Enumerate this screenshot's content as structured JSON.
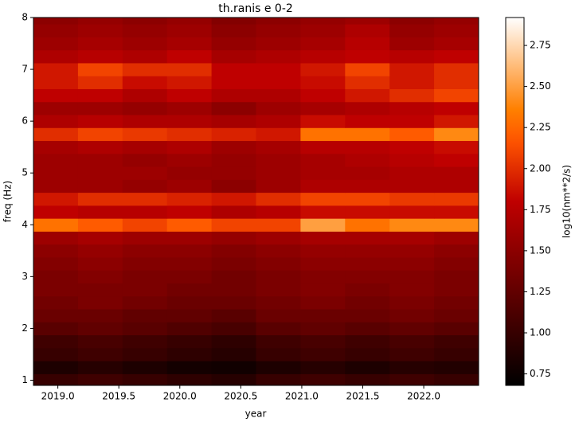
{
  "chart_data": {
    "type": "heatmap",
    "title": "th.ranis e 0-2",
    "x_label": "year",
    "y_label": "freq (Hz)",
    "colorbar_label": "log10(nm**2/s)",
    "colormap": "gist_heat",
    "xlim": [
      2018.8,
      2022.45
    ],
    "ylim": [
      0.9,
      8
    ],
    "xticks": [
      {
        "value": 2019,
        "label": "2019.0"
      },
      2019.5,
      {
        "value": 2020,
        "label": "2020.0"
      },
      2020.5,
      {
        "value": 2021,
        "label": "2021.0"
      },
      2021.5,
      {
        "value": 2022,
        "label": "2022.0"
      }
    ],
    "yticks": [
      1,
      2,
      3,
      4,
      5,
      6,
      7,
      8
    ],
    "clim": [
      0.68,
      2.92
    ],
    "cticks": [
      0.75,
      {
        "value": 1,
        "label": "1.00"
      },
      1.25,
      {
        "value": 1.5,
        "label": "1.50"
      },
      1.75,
      {
        "value": 2,
        "label": "2.00"
      },
      2.25,
      {
        "value": 2.5,
        "label": "2.50"
      },
      2.75
    ],
    "x": [
      2018.98,
      2019.35,
      2019.71,
      2020.08,
      2020.44,
      2020.81,
      2021.17,
      2021.54,
      2021.9,
      2022.27
    ],
    "y": [
      1,
      1.25,
      1.5,
      1.75,
      2,
      2.25,
      2.5,
      2.75,
      3,
      3.25,
      3.5,
      3.75,
      4,
      4.25,
      4.5,
      4.75,
      5,
      5.25,
      5.5,
      5.75,
      6,
      6.25,
      6.5,
      6.75,
      7,
      7.25,
      7.5,
      7.75,
      8
    ],
    "z": [
      [
        1.0,
        1.05,
        1.0,
        0.95,
        0.9,
        1.0,
        1.05,
        1.0,
        1.05,
        1.0
      ],
      [
        0.85,
        0.9,
        0.85,
        0.8,
        0.78,
        0.85,
        0.9,
        0.85,
        0.9,
        0.88
      ],
      [
        1.0,
        1.05,
        1.0,
        0.95,
        0.9,
        1.0,
        1.05,
        1.0,
        1.05,
        1.0
      ],
      [
        1.05,
        1.1,
        1.05,
        1.0,
        0.95,
        1.05,
        1.1,
        1.05,
        1.1,
        1.05
      ],
      [
        1.2,
        1.25,
        1.2,
        1.15,
        1.1,
        1.2,
        1.25,
        1.2,
        1.25,
        1.2
      ],
      [
        1.3,
        1.3,
        1.25,
        1.25,
        1.2,
        1.3,
        1.3,
        1.3,
        1.35,
        1.3
      ],
      [
        1.35,
        1.4,
        1.35,
        1.3,
        1.3,
        1.35,
        1.4,
        1.35,
        1.4,
        1.35
      ],
      [
        1.4,
        1.4,
        1.4,
        1.35,
        1.35,
        1.4,
        1.45,
        1.4,
        1.45,
        1.4
      ],
      [
        1.4,
        1.45,
        1.4,
        1.4,
        1.35,
        1.4,
        1.45,
        1.45,
        1.45,
        1.4
      ],
      [
        1.45,
        1.5,
        1.45,
        1.45,
        1.4,
        1.45,
        1.5,
        1.5,
        1.5,
        1.45
      ],
      [
        1.5,
        1.55,
        1.5,
        1.5,
        1.45,
        1.5,
        1.55,
        1.55,
        1.55,
        1.5
      ],
      [
        1.6,
        1.65,
        1.6,
        1.6,
        1.55,
        1.6,
        1.65,
        1.65,
        1.65,
        1.6
      ],
      [
        2.3,
        2.2,
        2.1,
        2.2,
        2.1,
        2.1,
        2.5,
        2.3,
        2.4,
        2.4
      ],
      [
        1.8,
        1.75,
        1.75,
        1.8,
        1.7,
        1.75,
        1.85,
        1.85,
        1.85,
        1.85
      ],
      [
        1.9,
        2.0,
        2.0,
        1.95,
        1.9,
        2.0,
        2.1,
        2.1,
        2.05,
        2.05
      ],
      [
        1.6,
        1.6,
        1.55,
        1.6,
        1.5,
        1.6,
        1.7,
        1.7,
        1.7,
        1.7
      ],
      [
        1.6,
        1.6,
        1.6,
        1.55,
        1.55,
        1.6,
        1.65,
        1.65,
        1.7,
        1.7
      ],
      [
        1.6,
        1.6,
        1.55,
        1.6,
        1.55,
        1.6,
        1.65,
        1.7,
        1.75,
        1.8
      ],
      [
        1.65,
        1.7,
        1.65,
        1.7,
        1.6,
        1.65,
        1.75,
        1.75,
        1.8,
        1.85
      ],
      [
        2.0,
        2.1,
        2.05,
        2.0,
        1.95,
        1.9,
        2.3,
        2.3,
        2.2,
        2.4
      ],
      [
        1.7,
        1.75,
        1.7,
        1.7,
        1.65,
        1.7,
        1.85,
        1.8,
        1.8,
        1.9
      ],
      [
        1.6,
        1.6,
        1.55,
        1.6,
        1.5,
        1.6,
        1.65,
        1.7,
        1.75,
        1.8
      ],
      [
        1.8,
        1.8,
        1.7,
        1.8,
        1.7,
        1.7,
        1.8,
        1.9,
        2.0,
        2.1
      ],
      [
        1.9,
        2.0,
        1.85,
        1.9,
        1.8,
        1.8,
        1.85,
        2.0,
        1.9,
        2.0
      ],
      [
        1.9,
        2.1,
        2.0,
        2.0,
        1.8,
        1.8,
        1.9,
        2.1,
        1.9,
        2.0
      ],
      [
        1.7,
        1.75,
        1.7,
        1.8,
        1.65,
        1.7,
        1.75,
        1.8,
        1.75,
        1.8
      ],
      [
        1.6,
        1.65,
        1.6,
        1.65,
        1.55,
        1.6,
        1.65,
        1.75,
        1.6,
        1.65
      ],
      [
        1.55,
        1.6,
        1.55,
        1.6,
        1.5,
        1.55,
        1.6,
        1.7,
        1.55,
        1.6
      ],
      [
        1.5,
        1.55,
        1.5,
        1.55,
        1.45,
        1.5,
        1.55,
        1.6,
        1.5,
        1.55
      ]
    ]
  }
}
